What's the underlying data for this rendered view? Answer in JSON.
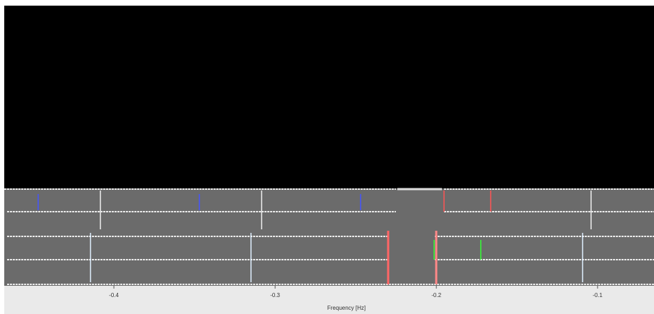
{
  "chart_data": {
    "type": "spectrum",
    "xlabel": "Frequency [Hz]",
    "xlim": [
      -0.468,
      -0.065
    ],
    "xticks": [
      -0.4,
      -0.3,
      -0.2,
      -0.1
    ]
  }
}
